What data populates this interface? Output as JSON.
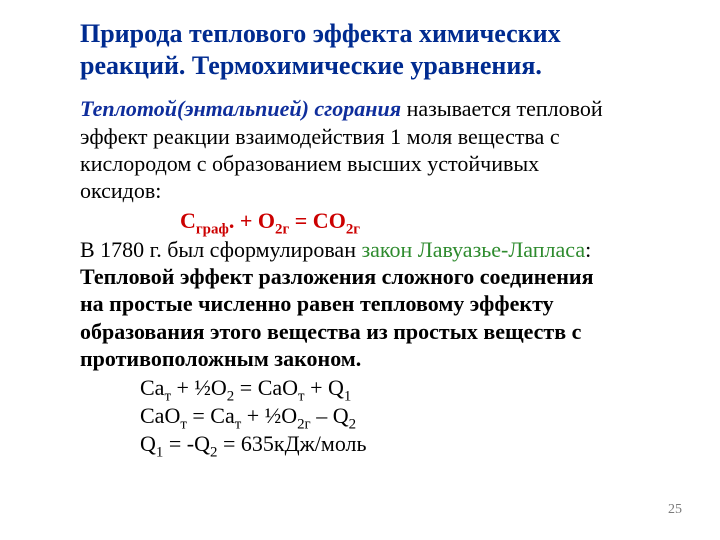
{
  "colors": {
    "title": "#002b90",
    "defterm": "#0f2e9c",
    "body": "#000000",
    "formula": "#cc0000",
    "law": "#2e8b2e",
    "pagenum": "#7a7a7a"
  },
  "title_line1": "Природа теплового эффекта химических",
  "title_line2": "реакций. Термохимические уравнения.",
  "def_term": "Теплотой(энтальпией) сгорания",
  "def_tail_l1": " называется тепловой",
  "def_l2": "эффект реакции взаимодействия 1 моля вещества с",
  "def_l3": "кислородом с образованием высших устойчивых",
  "def_l4": "оксидов:",
  "formula": {
    "p1": "С",
    "s1": "граф",
    "p2": ". + О",
    "s2": "2г",
    "p3": " = СО",
    "s3": "2г"
  },
  "law_intro": "В 1780 г. был сформулирован ",
  "law_name": "закон Лавуазье-Лапласа",
  "law_colon": ":",
  "law_b1": "Тепловой эффект разложения сложного соединения",
  "law_b2": "на простые численно равен тепловому эффекту",
  "law_b3": "образования этого вещества из простых веществ с",
  "law_b4": "противоположным законом.",
  "eq1": {
    "a": "Са",
    "as": "т",
    "b": " + ½О",
    "bs": "2",
    "c": " = СаО",
    "cs": "т",
    "d": " + Q",
    "ds": "1"
  },
  "eq2": {
    "a": "СаО",
    "as": "т",
    "b": " = Са",
    "bs": "т",
    "c": " + ½О",
    "cs": "2г",
    "d": " – Q",
    "ds": "2"
  },
  "eq3": {
    "a": "Q",
    "as": "1",
    "b": " = -Q",
    "bs": "2",
    "c": " = 635кДж/моль"
  },
  "page_number": "25"
}
